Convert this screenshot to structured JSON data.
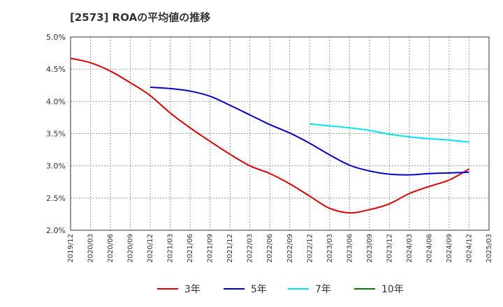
{
  "chart_data": {
    "type": "line",
    "title": "[2573]  ROAの平均値の推移",
    "xlabel": "",
    "ylabel": "",
    "ylim": [
      2.0,
      5.0
    ],
    "y_ticks": [
      "2.0%",
      "2.5%",
      "3.0%",
      "3.5%",
      "4.0%",
      "4.5%",
      "5.0%"
    ],
    "x_ticks": [
      "2019/12",
      "2020/03",
      "2020/06",
      "2020/09",
      "2020/12",
      "2021/03",
      "2021/06",
      "2021/09",
      "2021/12",
      "2022/03",
      "2022/06",
      "2022/09",
      "2022/12",
      "2023/03",
      "2023/06",
      "2023/09",
      "2023/12",
      "2024/03",
      "2024/06",
      "2024/09",
      "2024/12",
      "2025/03"
    ],
    "grid": true,
    "legend_position": "bottom",
    "series": [
      {
        "name": "3年",
        "color": "#e00000",
        "points": [
          [
            "2019/12",
            4.67
          ],
          [
            "2020/03",
            4.6
          ],
          [
            "2020/06",
            4.47
          ],
          [
            "2020/09",
            4.29
          ],
          [
            "2020/12",
            4.09
          ],
          [
            "2021/03",
            3.82
          ],
          [
            "2021/06",
            3.59
          ],
          [
            "2021/09",
            3.38
          ],
          [
            "2021/12",
            3.18
          ],
          [
            "2022/03",
            3.0
          ],
          [
            "2022/06",
            2.88
          ],
          [
            "2022/09",
            2.72
          ],
          [
            "2022/12",
            2.53
          ],
          [
            "2023/03",
            2.34
          ],
          [
            "2023/06",
            2.27
          ],
          [
            "2023/09",
            2.32
          ],
          [
            "2023/12",
            2.41
          ],
          [
            "2024/03",
            2.57
          ],
          [
            "2024/06",
            2.68
          ],
          [
            "2024/09",
            2.78
          ],
          [
            "2024/12",
            2.95
          ]
        ]
      },
      {
        "name": "5年",
        "color": "#0000cc",
        "points": [
          [
            "2020/12",
            4.22
          ],
          [
            "2021/03",
            4.2
          ],
          [
            "2021/06",
            4.16
          ],
          [
            "2021/09",
            4.08
          ],
          [
            "2021/12",
            3.94
          ],
          [
            "2022/03",
            3.79
          ],
          [
            "2022/06",
            3.64
          ],
          [
            "2022/09",
            3.51
          ],
          [
            "2022/12",
            3.35
          ],
          [
            "2023/03",
            3.17
          ],
          [
            "2023/06",
            3.01
          ],
          [
            "2023/09",
            2.92
          ],
          [
            "2023/12",
            2.87
          ],
          [
            "2024/03",
            2.86
          ],
          [
            "2024/06",
            2.88
          ],
          [
            "2024/09",
            2.89
          ],
          [
            "2024/12",
            2.9
          ]
        ]
      },
      {
        "name": "7年",
        "color": "#00e5ee",
        "points": [
          [
            "2022/12",
            3.65
          ],
          [
            "2023/03",
            3.62
          ],
          [
            "2023/06",
            3.59
          ],
          [
            "2023/09",
            3.55
          ],
          [
            "2023/12",
            3.49
          ],
          [
            "2024/03",
            3.45
          ],
          [
            "2024/06",
            3.42
          ],
          [
            "2024/09",
            3.4
          ],
          [
            "2024/12",
            3.37
          ]
        ]
      },
      {
        "name": "10年",
        "color": "#008000",
        "points": []
      }
    ]
  }
}
